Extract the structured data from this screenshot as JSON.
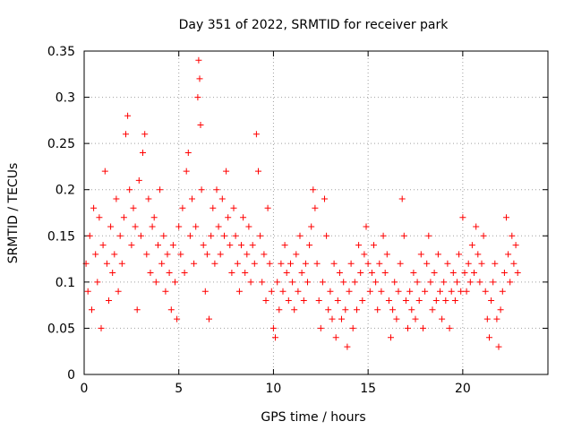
{
  "chart_data": {
    "type": "scatter",
    "title": "Day 351 of 2022, SRMTID for receiver park",
    "xlabel": "GPS time / hours",
    "ylabel": "SRMTID / TECUs",
    "xlim": [
      0,
      24.5
    ],
    "ylim": [
      0,
      0.35
    ],
    "xticks": [
      0,
      5,
      10,
      15,
      20
    ],
    "yticks": [
      0,
      0.05,
      0.1,
      0.15,
      0.2,
      0.25,
      0.3,
      0.35
    ],
    "xtick_labels": [
      "0",
      "5",
      "10",
      "15",
      "20"
    ],
    "ytick_labels": [
      "0",
      "0.05",
      "0.1",
      "0.15",
      "0.2",
      "0.25",
      "0.3",
      "0.35"
    ],
    "grid": true,
    "marker": "+",
    "color": "#ff0000",
    "series": [
      {
        "name": "SRMTID",
        "points": [
          [
            0.1,
            0.12
          ],
          [
            0.2,
            0.09
          ],
          [
            0.3,
            0.15
          ],
          [
            0.4,
            0.07
          ],
          [
            0.5,
            0.18
          ],
          [
            0.6,
            0.13
          ],
          [
            0.7,
            0.1
          ],
          [
            0.8,
            0.17
          ],
          [
            0.9,
            0.05
          ],
          [
            1.0,
            0.14
          ],
          [
            1.1,
            0.22
          ],
          [
            1.2,
            0.12
          ],
          [
            1.3,
            0.08
          ],
          [
            1.4,
            0.16
          ],
          [
            1.5,
            0.11
          ],
          [
            1.6,
            0.13
          ],
          [
            1.7,
            0.19
          ],
          [
            1.8,
            0.09
          ],
          [
            1.9,
            0.15
          ],
          [
            2.0,
            0.12
          ],
          [
            2.1,
            0.17
          ],
          [
            2.2,
            0.26
          ],
          [
            2.3,
            0.28
          ],
          [
            2.4,
            0.2
          ],
          [
            2.5,
            0.14
          ],
          [
            2.6,
            0.18
          ],
          [
            2.7,
            0.16
          ],
          [
            2.8,
            0.07
          ],
          [
            2.9,
            0.21
          ],
          [
            3.0,
            0.15
          ],
          [
            3.1,
            0.24
          ],
          [
            3.2,
            0.26
          ],
          [
            3.3,
            0.13
          ],
          [
            3.4,
            0.19
          ],
          [
            3.5,
            0.11
          ],
          [
            3.6,
            0.16
          ],
          [
            3.7,
            0.17
          ],
          [
            3.8,
            0.1
          ],
          [
            3.9,
            0.14
          ],
          [
            4.0,
            0.2
          ],
          [
            4.1,
            0.12
          ],
          [
            4.2,
            0.15
          ],
          [
            4.3,
            0.09
          ],
          [
            4.4,
            0.13
          ],
          [
            4.5,
            0.11
          ],
          [
            4.6,
            0.07
          ],
          [
            4.7,
            0.14
          ],
          [
            4.8,
            0.1
          ],
          [
            4.9,
            0.06
          ],
          [
            5.0,
            0.16
          ],
          [
            5.1,
            0.13
          ],
          [
            5.2,
            0.18
          ],
          [
            5.3,
            0.11
          ],
          [
            5.4,
            0.22
          ],
          [
            5.5,
            0.24
          ],
          [
            5.6,
            0.15
          ],
          [
            5.7,
            0.19
          ],
          [
            5.8,
            0.12
          ],
          [
            5.9,
            0.16
          ],
          [
            6.0,
            0.3
          ],
          [
            6.05,
            0.34
          ],
          [
            6.1,
            0.32
          ],
          [
            6.15,
            0.27
          ],
          [
            6.2,
            0.2
          ],
          [
            6.3,
            0.14
          ],
          [
            6.4,
            0.09
          ],
          [
            6.5,
            0.13
          ],
          [
            6.6,
            0.06
          ],
          [
            6.7,
            0.15
          ],
          [
            6.8,
            0.18
          ],
          [
            6.9,
            0.12
          ],
          [
            7.0,
            0.2
          ],
          [
            7.1,
            0.16
          ],
          [
            7.2,
            0.13
          ],
          [
            7.3,
            0.19
          ],
          [
            7.4,
            0.15
          ],
          [
            7.5,
            0.22
          ],
          [
            7.6,
            0.17
          ],
          [
            7.7,
            0.14
          ],
          [
            7.8,
            0.11
          ],
          [
            7.9,
            0.18
          ],
          [
            8.0,
            0.15
          ],
          [
            8.1,
            0.12
          ],
          [
            8.2,
            0.09
          ],
          [
            8.3,
            0.14
          ],
          [
            8.4,
            0.17
          ],
          [
            8.5,
            0.11
          ],
          [
            8.6,
            0.13
          ],
          [
            8.7,
            0.16
          ],
          [
            8.8,
            0.1
          ],
          [
            8.9,
            0.14
          ],
          [
            9.0,
            0.12
          ],
          [
            9.1,
            0.26
          ],
          [
            9.2,
            0.22
          ],
          [
            9.3,
            0.15
          ],
          [
            9.4,
            0.1
          ],
          [
            9.5,
            0.13
          ],
          [
            9.6,
            0.08
          ],
          [
            9.7,
            0.18
          ],
          [
            9.8,
            0.12
          ],
          [
            9.9,
            0.09
          ],
          [
            10.0,
            0.05
          ],
          [
            10.1,
            0.04
          ],
          [
            10.2,
            0.1
          ],
          [
            10.3,
            0.07
          ],
          [
            10.4,
            0.12
          ],
          [
            10.5,
            0.09
          ],
          [
            10.6,
            0.14
          ],
          [
            10.7,
            0.11
          ],
          [
            10.8,
            0.08
          ],
          [
            10.9,
            0.12
          ],
          [
            11.0,
            0.1
          ],
          [
            11.1,
            0.07
          ],
          [
            11.2,
            0.13
          ],
          [
            11.3,
            0.09
          ],
          [
            11.4,
            0.15
          ],
          [
            11.5,
            0.11
          ],
          [
            11.6,
            0.08
          ],
          [
            11.7,
            0.12
          ],
          [
            11.8,
            0.1
          ],
          [
            11.9,
            0.14
          ],
          [
            12.0,
            0.16
          ],
          [
            12.1,
            0.2
          ],
          [
            12.2,
            0.18
          ],
          [
            12.3,
            0.12
          ],
          [
            12.4,
            0.08
          ],
          [
            12.5,
            0.05
          ],
          [
            12.6,
            0.1
          ],
          [
            12.7,
            0.19
          ],
          [
            12.8,
            0.15
          ],
          [
            12.9,
            0.07
          ],
          [
            13.0,
            0.09
          ],
          [
            13.1,
            0.06
          ],
          [
            13.2,
            0.12
          ],
          [
            13.3,
            0.04
          ],
          [
            13.4,
            0.08
          ],
          [
            13.5,
            0.11
          ],
          [
            13.6,
            0.06
          ],
          [
            13.7,
            0.1
          ],
          [
            13.8,
            0.07
          ],
          [
            13.9,
            0.03
          ],
          [
            14.0,
            0.09
          ],
          [
            14.1,
            0.12
          ],
          [
            14.2,
            0.05
          ],
          [
            14.3,
            0.1
          ],
          [
            14.4,
            0.07
          ],
          [
            14.5,
            0.14
          ],
          [
            14.6,
            0.11
          ],
          [
            14.7,
            0.08
          ],
          [
            14.8,
            0.13
          ],
          [
            14.9,
            0.16
          ],
          [
            15.0,
            0.12
          ],
          [
            15.1,
            0.09
          ],
          [
            15.2,
            0.11
          ],
          [
            15.3,
            0.14
          ],
          [
            15.4,
            0.1
          ],
          [
            15.5,
            0.07
          ],
          [
            15.6,
            0.12
          ],
          [
            15.7,
            0.09
          ],
          [
            15.8,
            0.15
          ],
          [
            15.9,
            0.11
          ],
          [
            16.0,
            0.13
          ],
          [
            16.1,
            0.08
          ],
          [
            16.2,
            0.04
          ],
          [
            16.3,
            0.07
          ],
          [
            16.4,
            0.1
          ],
          [
            16.5,
            0.06
          ],
          [
            16.6,
            0.09
          ],
          [
            16.7,
            0.12
          ],
          [
            16.8,
            0.19
          ],
          [
            16.9,
            0.15
          ],
          [
            17.0,
            0.08
          ],
          [
            17.1,
            0.05
          ],
          [
            17.2,
            0.09
          ],
          [
            17.3,
            0.07
          ],
          [
            17.4,
            0.11
          ],
          [
            17.5,
            0.06
          ],
          [
            17.6,
            0.1
          ],
          [
            17.7,
            0.08
          ],
          [
            17.8,
            0.13
          ],
          [
            17.9,
            0.05
          ],
          [
            18.0,
            0.09
          ],
          [
            18.1,
            0.12
          ],
          [
            18.2,
            0.15
          ],
          [
            18.3,
            0.1
          ],
          [
            18.4,
            0.07
          ],
          [
            18.5,
            0.11
          ],
          [
            18.6,
            0.08
          ],
          [
            18.7,
            0.13
          ],
          [
            18.8,
            0.09
          ],
          [
            18.9,
            0.06
          ],
          [
            19.0,
            0.1
          ],
          [
            19.1,
            0.08
          ],
          [
            19.2,
            0.12
          ],
          [
            19.3,
            0.05
          ],
          [
            19.4,
            0.09
          ],
          [
            19.5,
            0.11
          ],
          [
            19.6,
            0.08
          ],
          [
            19.7,
            0.1
          ],
          [
            19.8,
            0.13
          ],
          [
            19.9,
            0.09
          ],
          [
            20.0,
            0.17
          ],
          [
            20.1,
            0.11
          ],
          [
            20.2,
            0.09
          ],
          [
            20.3,
            0.12
          ],
          [
            20.4,
            0.1
          ],
          [
            20.5,
            0.14
          ],
          [
            20.6,
            0.11
          ],
          [
            20.7,
            0.16
          ],
          [
            20.8,
            0.13
          ],
          [
            20.9,
            0.1
          ],
          [
            21.0,
            0.12
          ],
          [
            21.1,
            0.15
          ],
          [
            21.2,
            0.09
          ],
          [
            21.3,
            0.06
          ],
          [
            21.4,
            0.04
          ],
          [
            21.5,
            0.08
          ],
          [
            21.6,
            0.1
          ],
          [
            21.7,
            0.12
          ],
          [
            21.8,
            0.06
          ],
          [
            21.9,
            0.03
          ],
          [
            22.0,
            0.07
          ],
          [
            22.1,
            0.09
          ],
          [
            22.2,
            0.11
          ],
          [
            22.3,
            0.17
          ],
          [
            22.4,
            0.13
          ],
          [
            22.5,
            0.1
          ],
          [
            22.6,
            0.15
          ],
          [
            22.7,
            0.12
          ],
          [
            22.8,
            0.14
          ],
          [
            22.9,
            0.11
          ]
        ]
      }
    ]
  }
}
